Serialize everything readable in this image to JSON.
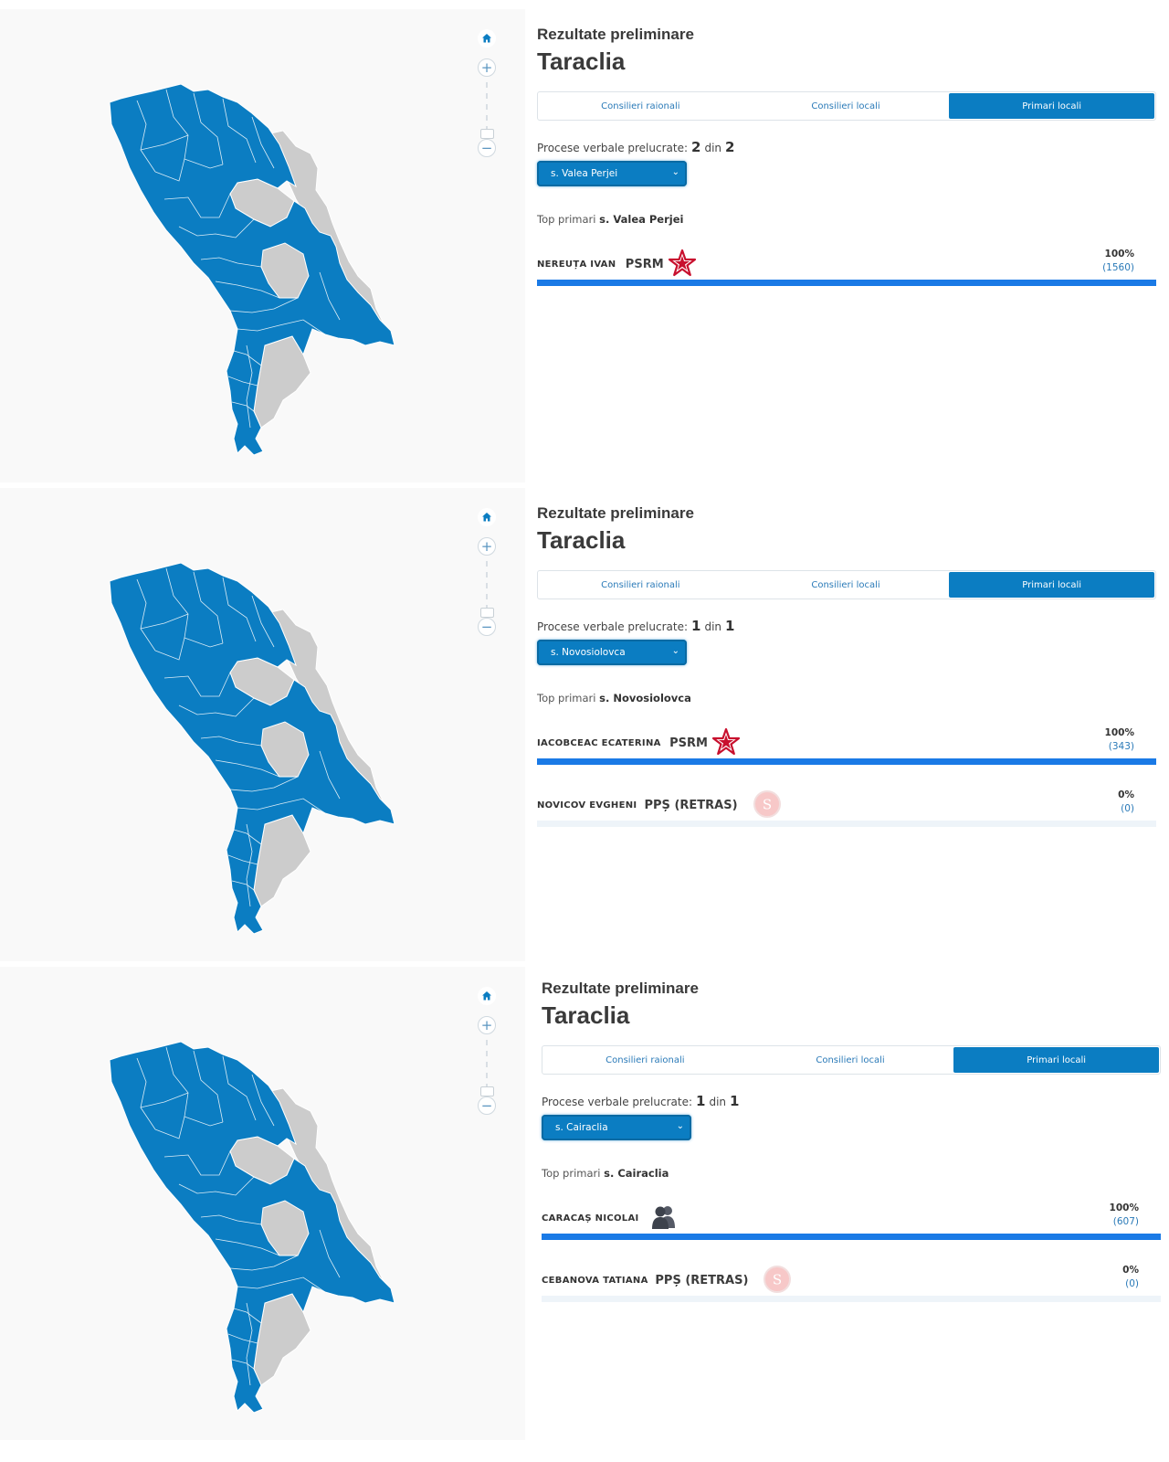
{
  "colors": {
    "accent": "#0b7dc2",
    "bar": "#1a7ae6",
    "map_blue": "#0b7dc2",
    "map_gray": "#cccccc"
  },
  "panels": [
    {
      "kicker": "Rezultate preliminare",
      "district": "Taraclia",
      "tabs": [
        "Consilieri raionali",
        "Consilieri locali",
        "Primari locali"
      ],
      "active_tab": 2,
      "processed_label": "Procese verbale prelucrate:",
      "processed_done": "2",
      "processed_sep": "din",
      "processed_total": "2",
      "locality_select": "s. Valea Perjei",
      "top_prefix": "Top primari",
      "top_locality": "s. Valea Perjei",
      "candidates": [
        {
          "name": "NEREUȚA IVAN",
          "party": "PSRM",
          "logo": "psrm-star-icon",
          "percent": "100%",
          "votes": "(1560)",
          "share": 1.0
        }
      ]
    },
    {
      "kicker": "Rezultate preliminare",
      "district": "Taraclia",
      "tabs": [
        "Consilieri raionali",
        "Consilieri locali",
        "Primari locali"
      ],
      "active_tab": 2,
      "processed_label": "Procese verbale prelucrate:",
      "processed_done": "1",
      "processed_sep": "din",
      "processed_total": "1",
      "locality_select": "s. Novosiolovca",
      "top_prefix": "Top primari",
      "top_locality": "s. Novosiolovca",
      "candidates": [
        {
          "name": "IACOBCEAC ECATERINA",
          "party": "PSRM",
          "logo": "psrm-star-icon",
          "percent": "100%",
          "votes": "(343)",
          "share": 1.0
        },
        {
          "name": "NOVICOV EVGHENI",
          "party": "PPȘ (RETRAS)",
          "logo": "pps-s-icon",
          "percent": "0%",
          "votes": "(0)",
          "share": 0.0
        }
      ]
    },
    {
      "kicker": "Rezultate preliminare",
      "district": "Taraclia",
      "tabs": [
        "Consilieri raionali",
        "Consilieri locali",
        "Primari locali"
      ],
      "active_tab": 2,
      "processed_label": "Procese verbale prelucrate:",
      "processed_done": "1",
      "processed_sep": "din",
      "processed_total": "1",
      "locality_select": "s. Cairaclia",
      "top_prefix": "Top primari",
      "top_locality": "s. Cairaclia",
      "candidates": [
        {
          "name": "CARACAȘ NICOLAI",
          "party": "",
          "logo": "independent-people-icon",
          "percent": "100%",
          "votes": "(607)",
          "share": 1.0
        },
        {
          "name": "CEBANOVA TATIANA",
          "party": "PPȘ (RETRAS)",
          "logo": "pps-s-icon",
          "percent": "0%",
          "votes": "(0)",
          "share": 0.0
        }
      ]
    }
  ]
}
